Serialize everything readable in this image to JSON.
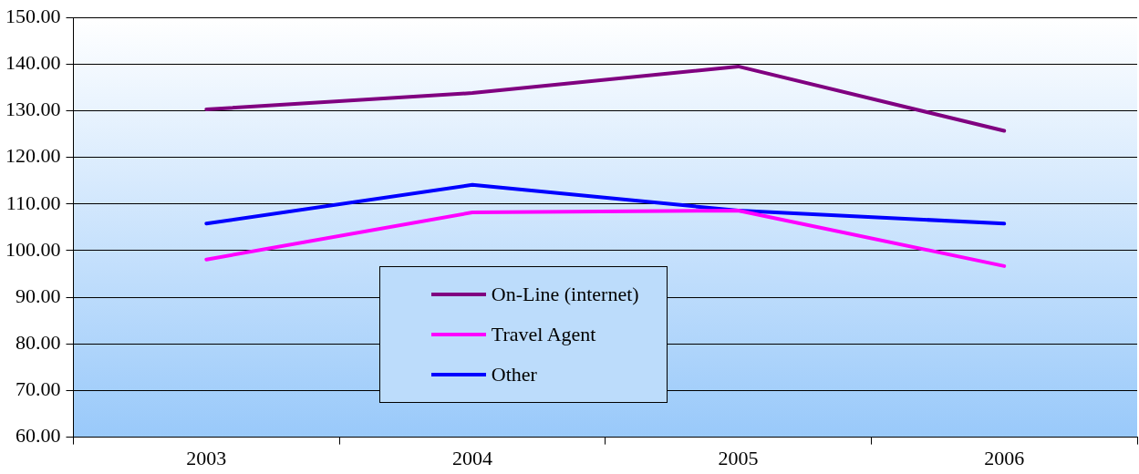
{
  "chart_data": {
    "type": "line",
    "categories": [
      "2003",
      "2004",
      "2005",
      "2006"
    ],
    "series": [
      {
        "name": "On-Line (internet)",
        "color": "#800080",
        "values": [
          130.3,
          133.8,
          139.5,
          125.7
        ]
      },
      {
        "name": "Travel Agent",
        "color": "#ff00ff",
        "values": [
          98.1,
          108.2,
          108.6,
          96.7
        ]
      },
      {
        "name": "Other",
        "color": "#0000ff",
        "values": [
          105.8,
          114.1,
          108.6,
          105.8
        ]
      }
    ],
    "ylim": [
      60,
      150
    ],
    "yticks": [
      {
        "value": 60,
        "label": "60.00"
      },
      {
        "value": 70,
        "label": "70.00"
      },
      {
        "value": 80,
        "label": "80.00"
      },
      {
        "value": 90,
        "label": "90.00"
      },
      {
        "value": 100,
        "label": "100.00"
      },
      {
        "value": 110,
        "label": "110.00"
      },
      {
        "value": 120,
        "label": "120.00"
      },
      {
        "value": 130,
        "label": "130.00"
      },
      {
        "value": 140,
        "label": "140.00"
      },
      {
        "value": 150,
        "label": "150.00"
      }
    ],
    "grid": "y",
    "legend": "bottom",
    "marker": "none",
    "line_style": "solid"
  }
}
